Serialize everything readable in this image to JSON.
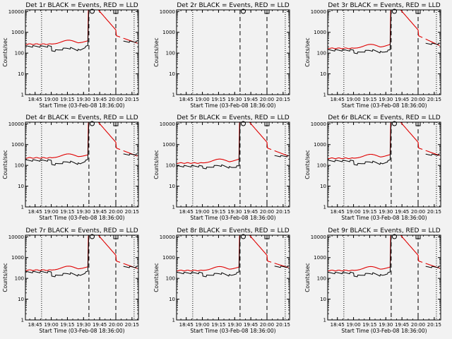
{
  "figure": {
    "background": "#f2f2f2",
    "events_color": "#000000",
    "lld_color": "#e00000",
    "x_tick_labels": [
      "18:45",
      "19:00",
      "19:15",
      "19:30",
      "19:45",
      "20:00",
      "20:15"
    ],
    "y_tick_labels": [
      "1",
      "10",
      "100",
      "1000",
      "10000"
    ]
  },
  "chart_data": [
    {
      "type": "line",
      "title": "Det 1r BLACK = Events, RED = LLD",
      "xlabel": "Start Time (03-Feb-08 18:36:00)",
      "ylabel": "Counts/sec",
      "y_scale": "log",
      "ylim": [
        1,
        12000
      ],
      "xlim": [
        "18:36",
        "20:21"
      ],
      "quiet_events": 230,
      "quiet_lld": 270,
      "dip_events": 140,
      "pre_events": 240,
      "pre_lld": 390,
      "end_lld": 300,
      "end_events": 380,
      "markers": [
        {
          "type": "dotted",
          "time": "18:51"
        },
        {
          "type": "dashed",
          "time": "19:35"
        },
        {
          "type": "dashed",
          "time": "20:00"
        },
        {
          "type": "dotted",
          "time": "20:17"
        }
      ],
      "symbols": [
        {
          "shape": "circle",
          "time": "19:38"
        },
        {
          "shape": "square",
          "time": "20:00"
        }
      ]
    },
    {
      "type": "line",
      "title": "Det 2r BLACK = Events, RED = LLD",
      "xlabel": "Start Time (03-Feb-08 18:36:00)",
      "ylabel": "Counts/sec",
      "y_scale": "log",
      "ylim": [
        1,
        12000
      ],
      "xlim": [
        "18:36",
        "20:21"
      ],
      "quiet_events": null,
      "quiet_lld": null,
      "markers": [
        {
          "type": "dotted",
          "time": "18:51"
        },
        {
          "type": "dashed",
          "time": "19:35"
        },
        {
          "type": "dashed",
          "time": "20:00"
        },
        {
          "type": "dotted",
          "time": "20:17"
        }
      ],
      "symbols": [
        {
          "shape": "circle",
          "time": "19:38"
        },
        {
          "shape": "square",
          "time": "20:00"
        }
      ]
    },
    {
      "type": "line",
      "title": "Det 3r BLACK = Events, RED = LLD",
      "xlabel": "Start Time (03-Feb-08 18:36:00)",
      "ylabel": "Counts/sec",
      "y_scale": "log",
      "ylim": [
        1,
        12000
      ],
      "xlim": [
        "18:36",
        "20:21"
      ],
      "quiet_events": 150,
      "quiet_lld": 170,
      "dip_events": 110,
      "pre_events": 150,
      "pre_lld": 260,
      "end_lld": 230,
      "end_events": 300,
      "markers": [
        {
          "type": "dotted",
          "time": "18:51"
        },
        {
          "type": "dashed",
          "time": "19:35"
        },
        {
          "type": "dashed",
          "time": "20:00"
        },
        {
          "type": "dotted",
          "time": "20:17"
        }
      ],
      "symbols": [
        {
          "shape": "circle",
          "time": "19:38"
        },
        {
          "shape": "square",
          "time": "20:00"
        }
      ]
    },
    {
      "type": "line",
      "title": "Det 4r BLACK = Events, RED = LLD",
      "xlabel": "Start Time (03-Feb-08 18:36:00)",
      "ylabel": "Counts/sec",
      "y_scale": "log",
      "ylim": [
        1,
        12000
      ],
      "xlim": [
        "18:36",
        "20:21"
      ],
      "quiet_events": 190,
      "quiet_lld": 230,
      "dip_events": 120,
      "pre_events": 200,
      "pre_lld": 320,
      "end_lld": 280,
      "end_events": 360,
      "markers": [
        {
          "type": "dotted",
          "time": "18:51"
        },
        {
          "type": "dashed",
          "time": "19:35"
        },
        {
          "type": "dashed",
          "time": "20:00"
        },
        {
          "type": "dotted",
          "time": "20:17"
        }
      ],
      "symbols": [
        {
          "shape": "circle",
          "time": "19:38"
        },
        {
          "shape": "square",
          "time": "20:00"
        }
      ]
    },
    {
      "type": "line",
      "title": "Det 5r BLACK = Events, RED = LLD",
      "xlabel": "Start Time (03-Feb-08 18:36:00)",
      "ylabel": "Counts/sec",
      "y_scale": "log",
      "ylim": [
        1,
        12000
      ],
      "xlim": [
        "18:36",
        "20:21"
      ],
      "quiet_events": 100,
      "quiet_lld": 130,
      "dip_events": 80,
      "pre_events": 100,
      "pre_lld": 200,
      "end_lld": 280,
      "end_events": 300,
      "markers": [
        {
          "type": "dotted",
          "time": "18:51"
        },
        {
          "type": "dashed",
          "time": "19:35"
        },
        {
          "type": "dashed",
          "time": "20:00"
        },
        {
          "type": "dotted",
          "time": "20:17"
        }
      ],
      "symbols": [
        {
          "shape": "circle",
          "time": "19:38"
        },
        {
          "shape": "square",
          "time": "20:00"
        }
      ]
    },
    {
      "type": "line",
      "title": "Det 6r BLACK = Events, RED = LLD",
      "xlabel": "Start Time (03-Feb-08 18:36:00)",
      "ylabel": "Counts/sec",
      "y_scale": "log",
      "ylim": [
        1,
        12000
      ],
      "xlim": [
        "18:36",
        "20:21"
      ],
      "quiet_events": 180,
      "quiet_lld": 220,
      "dip_events": 120,
      "pre_events": 190,
      "pre_lld": 330,
      "end_lld": 300,
      "end_events": 350,
      "markers": [
        {
          "type": "dotted",
          "time": "18:51"
        },
        {
          "type": "dashed",
          "time": "19:35"
        },
        {
          "type": "dashed",
          "time": "20:00"
        },
        {
          "type": "dotted",
          "time": "20:17"
        }
      ],
      "symbols": [
        {
          "shape": "circle",
          "time": "19:38"
        },
        {
          "shape": "square",
          "time": "20:00"
        }
      ]
    },
    {
      "type": "line",
      "title": "Det 7r BLACK = Events, RED = LLD",
      "xlabel": "Start Time (03-Feb-08 18:36:00)",
      "ylabel": "Counts/sec",
      "y_scale": "log",
      "ylim": [
        1,
        12000
      ],
      "xlim": [
        "18:36",
        "20:21"
      ],
      "quiet_events": 220,
      "quiet_lld": 250,
      "dip_events": 140,
      "pre_events": 230,
      "pre_lld": 360,
      "end_lld": 300,
      "end_events": 380,
      "markers": [
        {
          "type": "dotted",
          "time": "18:51"
        },
        {
          "type": "dashed",
          "time": "19:35"
        },
        {
          "type": "dashed",
          "time": "20:00"
        },
        {
          "type": "dotted",
          "time": "20:17"
        }
      ],
      "symbols": [
        {
          "shape": "circle",
          "time": "19:38"
        },
        {
          "shape": "square",
          "time": "20:00"
        }
      ]
    },
    {
      "type": "line",
      "title": "Det 8r BLACK = Events, RED = LLD",
      "xlabel": "Start Time (03-Feb-08 18:36:00)",
      "ylabel": "Counts/sec",
      "y_scale": "log",
      "ylim": [
        1,
        12000
      ],
      "xlim": [
        "18:36",
        "20:21"
      ],
      "quiet_events": 200,
      "quiet_lld": 240,
      "dip_events": 140,
      "pre_events": 210,
      "pre_lld": 350,
      "end_lld": 330,
      "end_events": 390,
      "markers": [
        {
          "type": "dotted",
          "time": "18:51"
        },
        {
          "type": "dashed",
          "time": "19:35"
        },
        {
          "type": "dashed",
          "time": "20:00"
        },
        {
          "type": "dotted",
          "time": "20:17"
        }
      ],
      "symbols": [
        {
          "shape": "circle",
          "time": "19:38"
        },
        {
          "shape": "square",
          "time": "20:00"
        }
      ]
    },
    {
      "type": "line",
      "title": "Det 9r BLACK = Events, RED = LLD",
      "xlabel": "Start Time (03-Feb-08 18:36:00)",
      "ylabel": "Counts/sec",
      "y_scale": "log",
      "ylim": [
        1,
        12000
      ],
      "xlim": [
        "18:36",
        "20:21"
      ],
      "quiet_events": 200,
      "quiet_lld": 240,
      "dip_events": 140,
      "pre_events": 210,
      "pre_lld": 350,
      "end_lld": 310,
      "end_events": 380,
      "markers": [
        {
          "type": "dotted",
          "time": "18:51"
        },
        {
          "type": "dashed",
          "time": "19:35"
        },
        {
          "type": "dashed",
          "time": "20:00"
        },
        {
          "type": "dotted",
          "time": "20:17"
        }
      ],
      "symbols": [
        {
          "shape": "circle",
          "time": "19:38"
        },
        {
          "shape": "square",
          "time": "20:00"
        }
      ]
    }
  ]
}
